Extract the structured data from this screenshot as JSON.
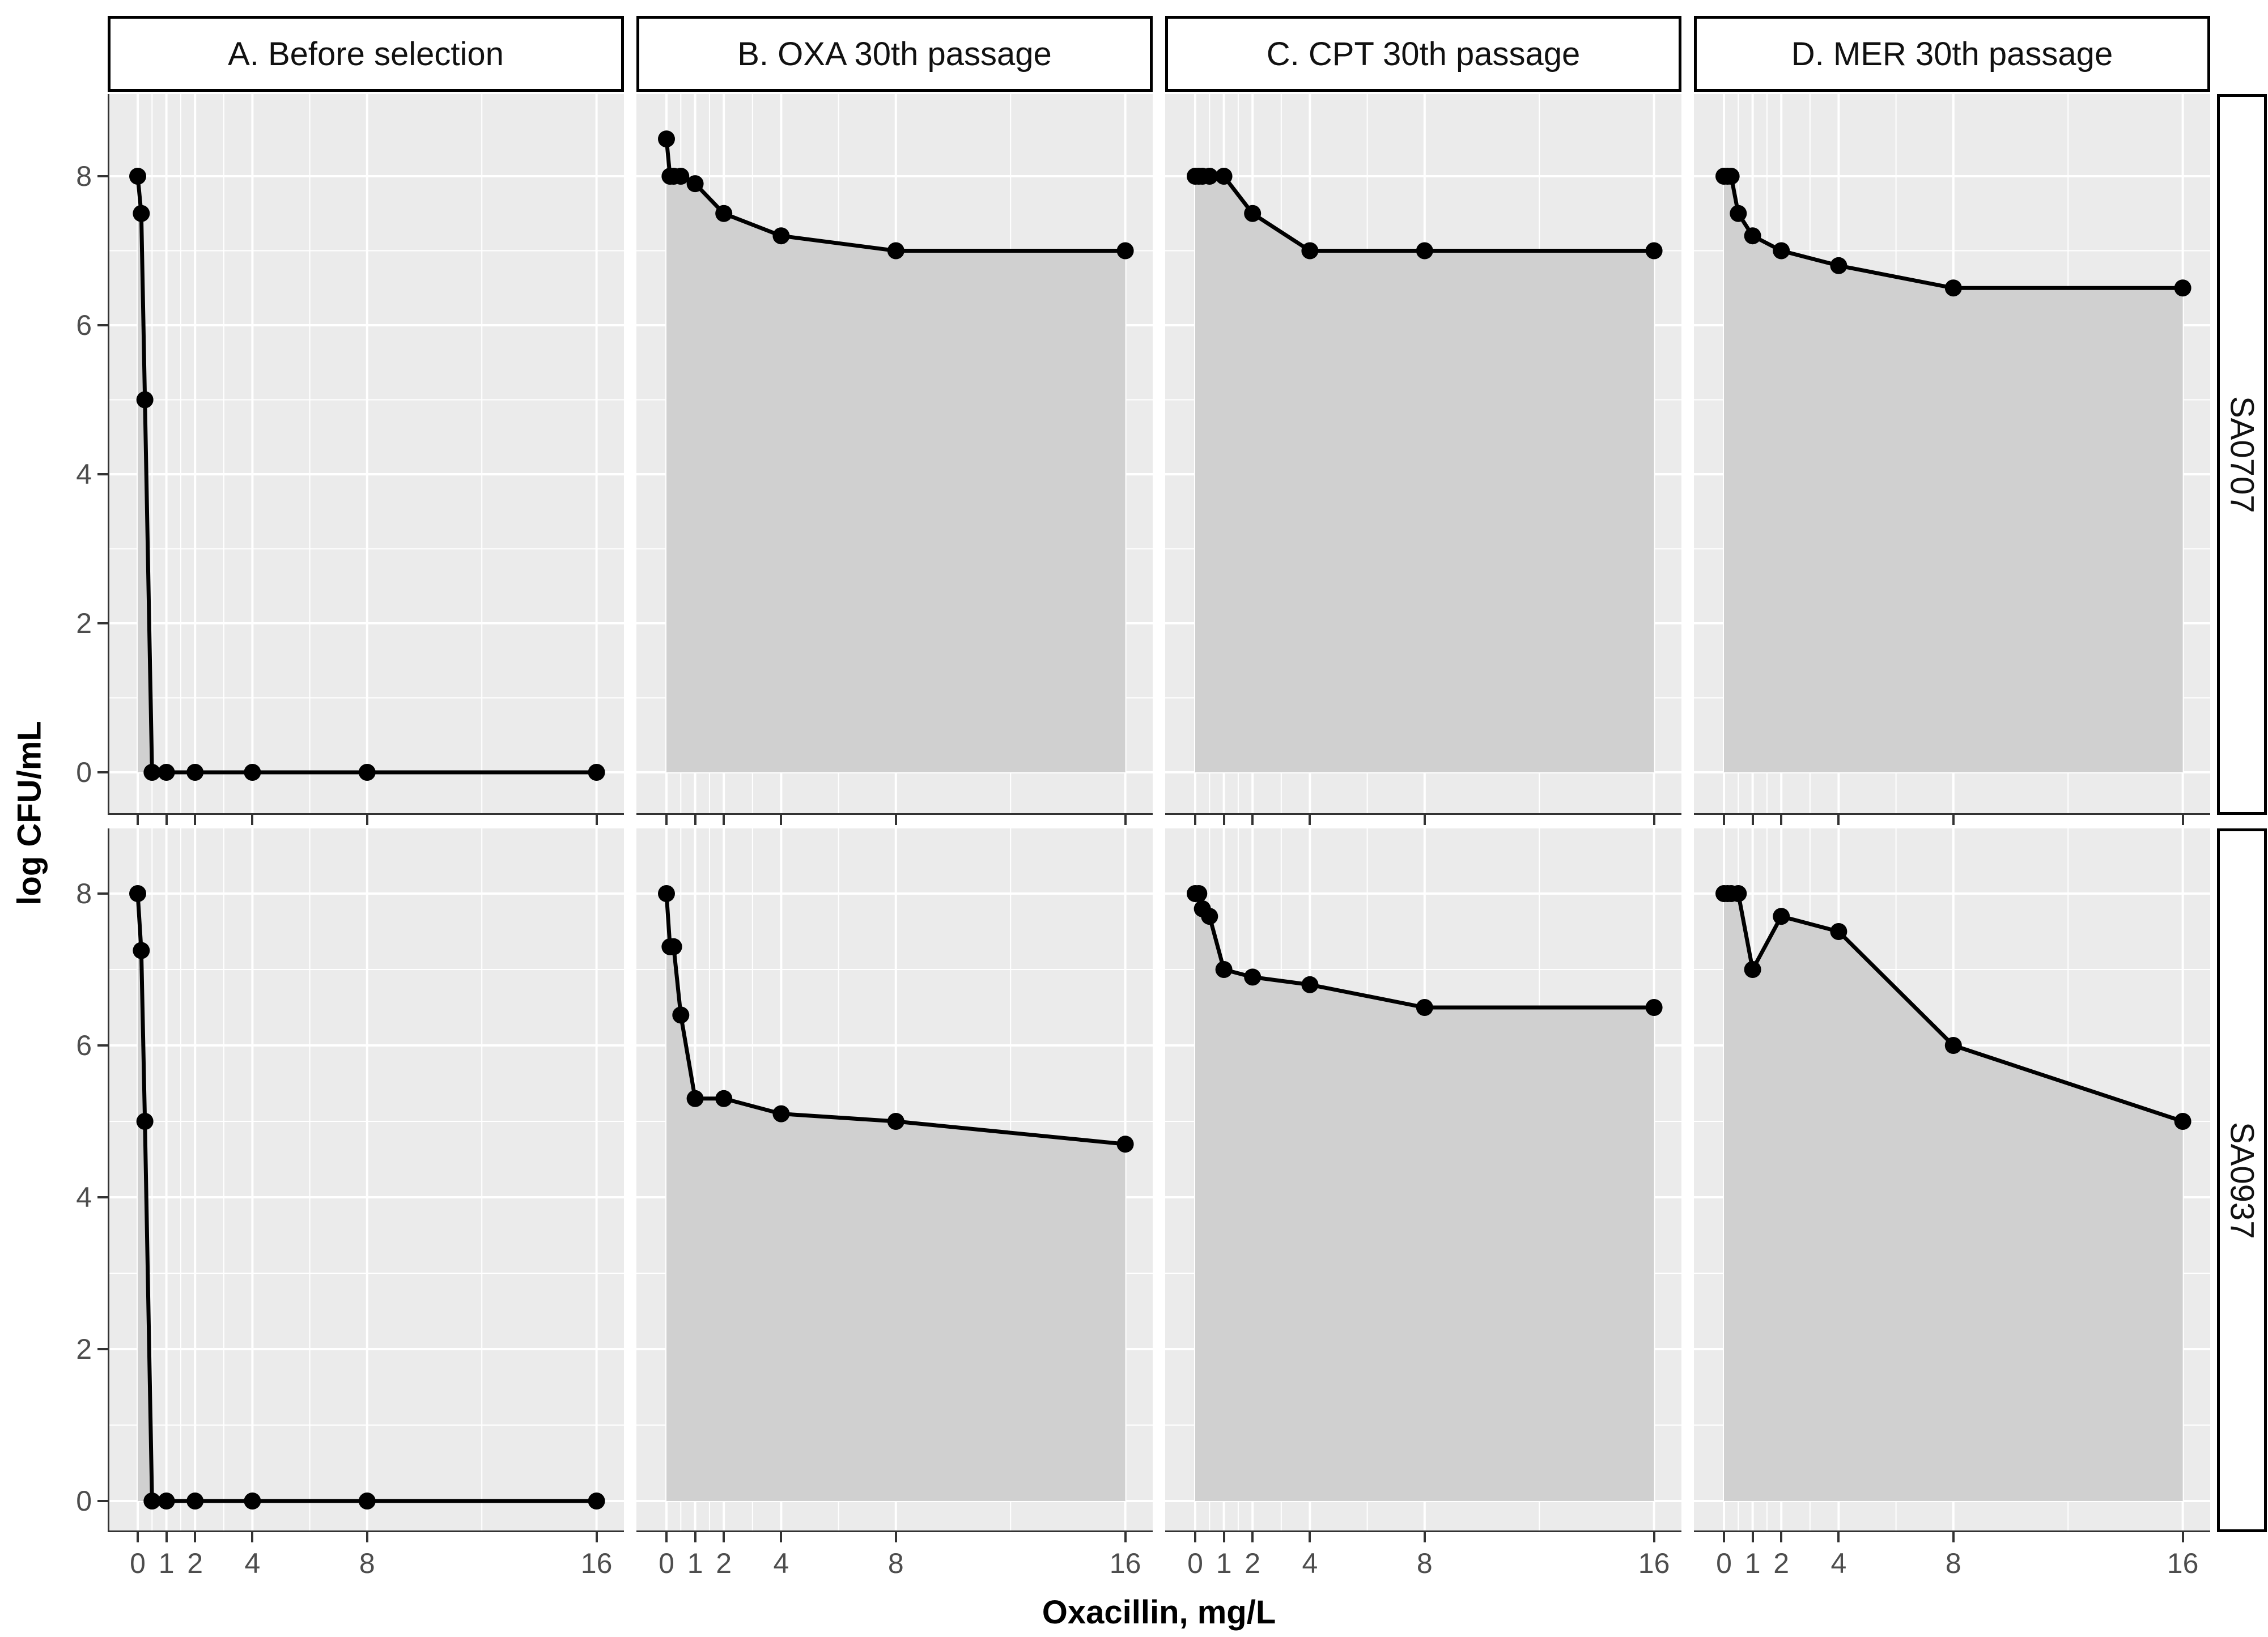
{
  "chart_data": {
    "type": "line",
    "title": "",
    "xlabel": "Oxacillin, mg/L",
    "ylabel": "log CFU/mL",
    "legend": "none",
    "grid": "on",
    "x_scale": "linear",
    "x_ticks": [
      0,
      1,
      2,
      4,
      8,
      16
    ],
    "x_tick_labels": [
      "0",
      "1",
      "2",
      "4",
      "8",
      "16"
    ],
    "x_minor_ticks": [
      0.5,
      1.5,
      3,
      6,
      12
    ],
    "y_ticks": [
      0,
      2,
      4,
      6,
      8
    ],
    "y_tick_labels": [
      "0",
      "2",
      "4",
      "6",
      "8"
    ],
    "y_minor_ticks": [
      1,
      3,
      5,
      7
    ],
    "x_range": [
      -1.05,
      16.95
    ],
    "y_range": [
      -0.55,
      9.1
    ],
    "col_facets": [
      "A. Before selection",
      "B. OXA 30th passage",
      "C. CPT 30th passage",
      "D. MER 30th passage"
    ],
    "row_facets": [
      "SA0707",
      "SA0937"
    ],
    "x": [
      0,
      0.125,
      0.25,
      0.5,
      1,
      2,
      4,
      8,
      16
    ],
    "series": [
      {
        "row": "SA0707",
        "col": "A. Before selection",
        "values": [
          8,
          7.5,
          5,
          0,
          0,
          0,
          0,
          0,
          0
        ]
      },
      {
        "row": "SA0707",
        "col": "B. OXA 30th passage",
        "values": [
          8.5,
          8,
          8,
          8,
          7.9,
          7.5,
          7.2,
          7,
          7
        ]
      },
      {
        "row": "SA0707",
        "col": "C. CPT 30th passage",
        "values": [
          8,
          8,
          8,
          8,
          8,
          7.5,
          7,
          7,
          7
        ]
      },
      {
        "row": "SA0707",
        "col": "D. MER 30th passage",
        "values": [
          8,
          8,
          8,
          7.5,
          7.2,
          7,
          6.8,
          6.5,
          6.5
        ]
      },
      {
        "row": "SA0937",
        "col": "A. Before selection",
        "values": [
          8,
          7.25,
          5,
          0,
          0,
          0,
          0,
          0,
          0
        ]
      },
      {
        "row": "SA0937",
        "col": "B. OXA 30th passage",
        "values": [
          8,
          7.3,
          7.3,
          6.4,
          5.3,
          5.3,
          5.1,
          5,
          4.7
        ]
      },
      {
        "row": "SA0937",
        "col": "C. CPT 30th passage",
        "values": [
          8,
          8,
          7.8,
          7.7,
          7,
          6.9,
          6.8,
          6.5,
          6.5
        ]
      },
      {
        "row": "SA0937",
        "col": "D. MER 30th passage",
        "values": [
          8,
          8,
          8,
          8,
          7,
          7.7,
          7.5,
          6,
          5
        ]
      }
    ],
    "colors": {
      "figure_bg": "#ffffff",
      "panel_bg": "#ebebeb",
      "grid": "#ffffff",
      "area_fill": "#d0d0d0",
      "line": "#000000",
      "point": "#000000",
      "axis_line": "#333333",
      "tick": "#333333",
      "tick_label": "#4d4d4d",
      "strip_bg": "#ffffff",
      "strip_border": "#000000"
    }
  }
}
